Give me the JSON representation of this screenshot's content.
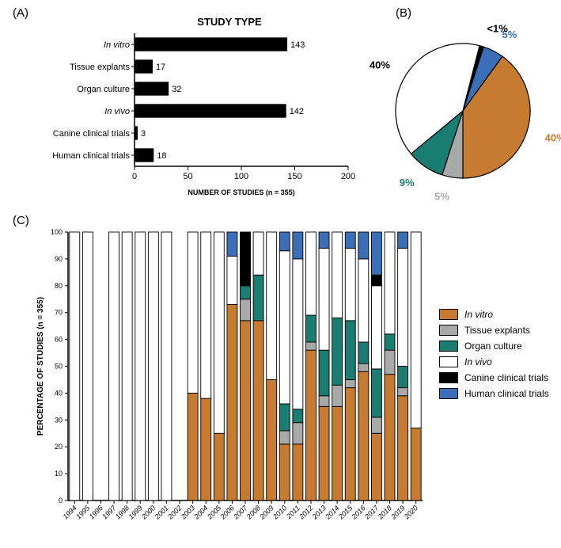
{
  "colors": {
    "in_vitro": "#c77b30",
    "tissue_explants": "#a9a9a9",
    "organ_culture": "#197e71",
    "in_vivo": "#ffffff",
    "canine": "#000000",
    "human": "#3a6fb7",
    "bar_fill": "#000000",
    "bar_outline": "#000000",
    "axis": "#000000",
    "text": "#000000"
  },
  "panelA": {
    "label": "(A)",
    "title": "STUDY TYPE",
    "xlabel": "NUMBER OF STUDIES (n = 355)",
    "xlim": [
      0,
      200
    ],
    "xtick_step": 50,
    "categories": [
      "In vitro",
      "Tissue explants",
      "Organ culture",
      "In vivo",
      "Canine clinical trials",
      "Human clinical trials"
    ],
    "values": [
      143,
      17,
      32,
      142,
      3,
      18
    ],
    "italic": [
      true,
      false,
      false,
      true,
      false,
      false
    ],
    "title_fontsize": 13,
    "label_fontsize": 11,
    "tick_fontsize": 11
  },
  "panelB": {
    "label": "(B)",
    "slices": [
      {
        "key": "human",
        "pct": 5,
        "label": "5%",
        "color_key": "human"
      },
      {
        "key": "in_vitro",
        "pct": 40,
        "label": "40%",
        "color_key": "in_vitro"
      },
      {
        "key": "tissue",
        "pct": 5,
        "label": "5%",
        "color_key": "tissue_explants"
      },
      {
        "key": "organ",
        "pct": 9,
        "label": "9%",
        "color_key": "organ_culture"
      },
      {
        "key": "in_vivo",
        "pct": 40,
        "label": "40%",
        "color_key": "in_vivo"
      },
      {
        "key": "canine",
        "pct": 1,
        "label": "<1%",
        "color_key": "canine"
      }
    ],
    "label_fontsize": 13,
    "label_weight": "bold",
    "start_angle": -72
  },
  "panelC": {
    "label": "(C)",
    "ylabel": "PERCENTAGE OF STUDIES (n = 355)",
    "ylim": [
      0,
      100
    ],
    "ytick_step": 10,
    "years": [
      "1994",
      "1995",
      "1996",
      "1997",
      "1998",
      "1999",
      "2000",
      "2001",
      "2002",
      "2003",
      "2004",
      "2005",
      "2006",
      "2007",
      "2008",
      "2009",
      "2010",
      "2011",
      "2012",
      "2013",
      "2014",
      "2015",
      "2016",
      "2017",
      "2018",
      "2019",
      "2020"
    ],
    "series_order": [
      "in_vitro",
      "tissue_explants",
      "organ_culture",
      "in_vivo",
      "canine",
      "human"
    ],
    "data": {
      "1994": {
        "in_vitro": 0,
        "tissue_explants": 0,
        "organ_culture": 0,
        "in_vivo": 100,
        "canine": 0,
        "human": 0
      },
      "1995": {
        "in_vitro": 0,
        "tissue_explants": 0,
        "organ_culture": 0,
        "in_vivo": 100,
        "canine": 0,
        "human": 0
      },
      "1996": null,
      "1997": {
        "in_vitro": 0,
        "tissue_explants": 0,
        "organ_culture": 0,
        "in_vivo": 100,
        "canine": 0,
        "human": 0
      },
      "1998": {
        "in_vitro": 0,
        "tissue_explants": 0,
        "organ_culture": 0,
        "in_vivo": 100,
        "canine": 0,
        "human": 0
      },
      "1999": {
        "in_vitro": 0,
        "tissue_explants": 0,
        "organ_culture": 0,
        "in_vivo": 100,
        "canine": 0,
        "human": 0
      },
      "2000": {
        "in_vitro": 0,
        "tissue_explants": 0,
        "organ_culture": 0,
        "in_vivo": 100,
        "canine": 0,
        "human": 0
      },
      "2001": {
        "in_vitro": 0,
        "tissue_explants": 0,
        "organ_culture": 0,
        "in_vivo": 100,
        "canine": 0,
        "human": 0
      },
      "2002": null,
      "2003": {
        "in_vitro": 40,
        "tissue_explants": 0,
        "organ_culture": 0,
        "in_vivo": 60,
        "canine": 0,
        "human": 0
      },
      "2004": {
        "in_vitro": 38,
        "tissue_explants": 0,
        "organ_culture": 0,
        "in_vivo": 62,
        "canine": 0,
        "human": 0
      },
      "2005": {
        "in_vitro": 25,
        "tissue_explants": 0,
        "organ_culture": 0,
        "in_vivo": 75,
        "canine": 0,
        "human": 0
      },
      "2006": {
        "in_vitro": 73,
        "tissue_explants": 0,
        "organ_culture": 0,
        "in_vivo": 18,
        "canine": 0,
        "human": 9
      },
      "2007": {
        "in_vitro": 67,
        "tissue_explants": 8,
        "organ_culture": 5,
        "in_vivo": 0,
        "canine": 20,
        "human": 0
      },
      "2008": {
        "in_vitro": 67,
        "tissue_explants": 0,
        "organ_culture": 17,
        "in_vivo": 16,
        "canine": 0,
        "human": 0
      },
      "2009": {
        "in_vitro": 45,
        "tissue_explants": 0,
        "organ_culture": 0,
        "in_vivo": 55,
        "canine": 0,
        "human": 0
      },
      "2010": {
        "in_vitro": 21,
        "tissue_explants": 5,
        "organ_culture": 10,
        "in_vivo": 57,
        "canine": 0,
        "human": 7
      },
      "2011": {
        "in_vitro": 21,
        "tissue_explants": 8,
        "organ_culture": 5,
        "in_vivo": 56,
        "canine": 0,
        "human": 10
      },
      "2012": {
        "in_vitro": 56,
        "tissue_explants": 3,
        "organ_culture": 10,
        "in_vivo": 31,
        "canine": 0,
        "human": 0
      },
      "2013": {
        "in_vitro": 35,
        "tissue_explants": 4,
        "organ_culture": 17,
        "in_vivo": 38,
        "canine": 0,
        "human": 6
      },
      "2014": {
        "in_vitro": 35,
        "tissue_explants": 8,
        "organ_culture": 25,
        "in_vivo": 32,
        "canine": 0,
        "human": 0
      },
      "2015": {
        "in_vitro": 42,
        "tissue_explants": 3,
        "organ_culture": 22,
        "in_vivo": 27,
        "canine": 0,
        "human": 6
      },
      "2016": {
        "in_vitro": 48,
        "tissue_explants": 3,
        "organ_culture": 8,
        "in_vivo": 31,
        "canine": 0,
        "human": 10
      },
      "2017": {
        "in_vitro": 25,
        "tissue_explants": 6,
        "organ_culture": 18,
        "in_vivo": 31,
        "canine": 4,
        "human": 16
      },
      "2018": {
        "in_vitro": 47,
        "tissue_explants": 9,
        "organ_culture": 6,
        "in_vivo": 38,
        "canine": 0,
        "human": 0
      },
      "2019": {
        "in_vitro": 39,
        "tissue_explants": 3,
        "organ_culture": 8,
        "in_vivo": 44,
        "canine": 0,
        "human": 6
      },
      "2020": {
        "in_vitro": 27,
        "tissue_explants": 0,
        "organ_culture": 0,
        "in_vivo": 73,
        "canine": 0,
        "human": 0
      }
    },
    "bar_border": "#000000",
    "label_fontsize": 10,
    "tick_fontsize": 9
  },
  "legend": {
    "items": [
      {
        "key": "in_vitro",
        "label": "In vitro",
        "italic": true
      },
      {
        "key": "tissue_explants",
        "label": "Tissue explants",
        "italic": false
      },
      {
        "key": "organ_culture",
        "label": "Organ culture",
        "italic": false
      },
      {
        "key": "in_vivo",
        "label": "In vivo",
        "italic": true
      },
      {
        "key": "canine",
        "label": "Canine clinical trials",
        "italic": false
      },
      {
        "key": "human",
        "label": "Human clinical trials",
        "italic": false
      }
    ]
  }
}
